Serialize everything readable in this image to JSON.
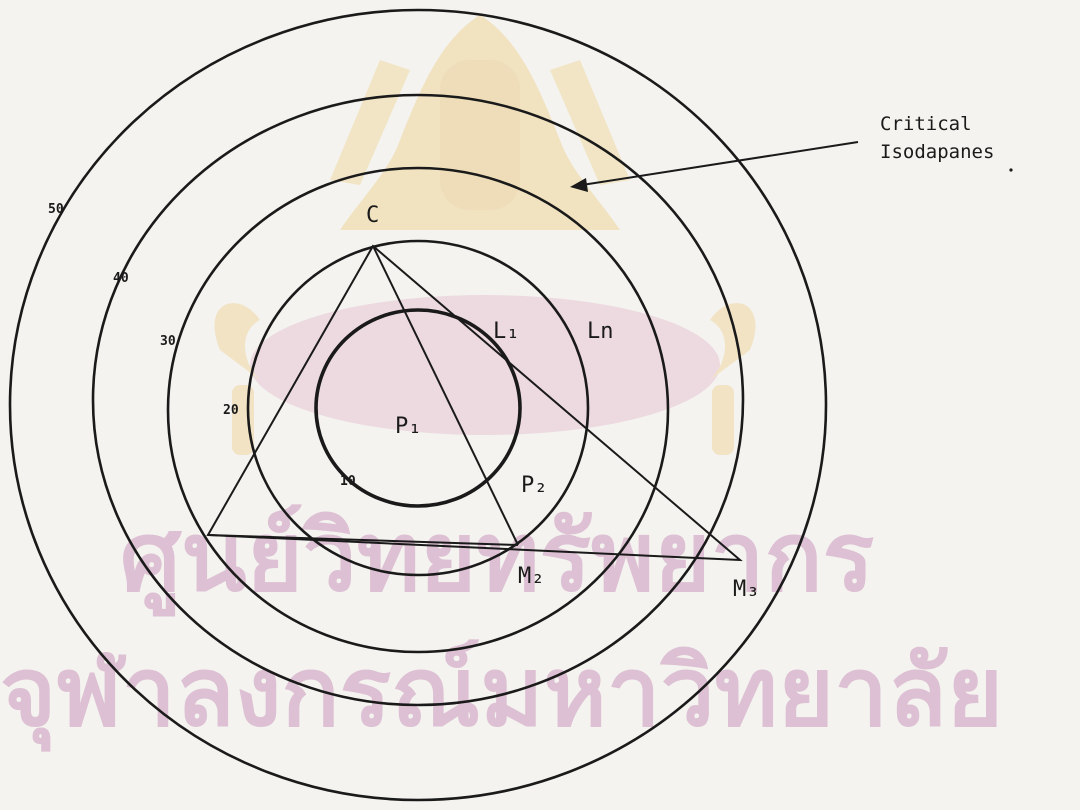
{
  "diagram": {
    "annotation": {
      "line1": "Critical",
      "line2": "Isodapanes"
    },
    "points": {
      "c": "C",
      "m2": "M₂",
      "m3": "M₃"
    },
    "regions": {
      "l1": "L₁",
      "ln": "Ln",
      "p1": "P₁",
      "p2": "P₂"
    },
    "ring_labels": [
      "10",
      "20",
      "30",
      "40",
      "50"
    ],
    "watermark": {
      "line1": "ศูนย์วิทยทรัพยากร",
      "line2": "จุฬาลงกรณ์มหาวิทยาลัย"
    },
    "colors": {
      "ink": "#1a1a1a",
      "paper": "#f4f3ef",
      "watermark_gold": "#e8c98a",
      "watermark_pink": "#e2b4cc",
      "watermark_text": "#d9b8cf"
    }
  }
}
